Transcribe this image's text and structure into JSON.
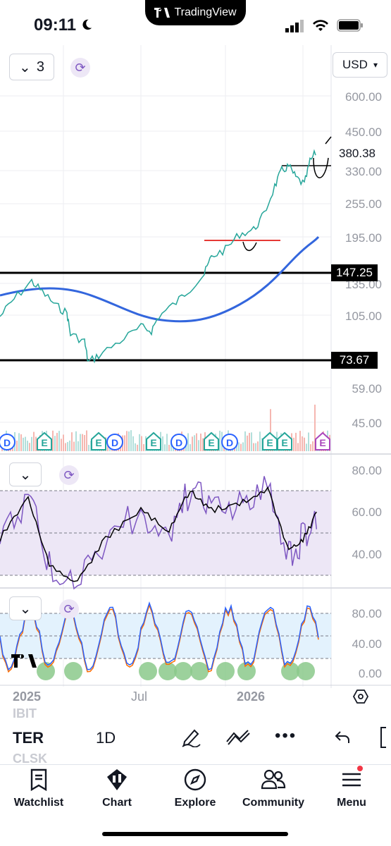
{
  "status": {
    "time": "09:11"
  },
  "island_label": "TradingView",
  "symbol": "TER",
  "interval": "1D",
  "currency": "USD",
  "layout_count": "3",
  "price_axis": [
    "600.00",
    "450.00",
    "330.00",
    "255.00",
    "195.00",
    "135.00",
    "105.00",
    "59.00",
    "45.00"
  ],
  "price_badges": {
    "last": "380.38",
    "line_upper": "147.25",
    "line_lower": "73.67"
  },
  "rsi_axis": [
    "80.00",
    "60.00",
    "40.00"
  ],
  "stoch_axis": [
    "80.00",
    "40.00",
    "0.00"
  ],
  "time_axis": [
    "2025",
    "Jul",
    "2026"
  ],
  "event_markers": [
    "D",
    "E",
    "E",
    "D",
    "E",
    "D",
    "E",
    "D",
    "E",
    "E"
  ],
  "ghost_symbols": [
    "IBIT",
    "CLSK"
  ],
  "nav": [
    {
      "label": "Watchlist",
      "icon": "watchlist-icon"
    },
    {
      "label": "Chart",
      "icon": "chart-icon"
    },
    {
      "label": "Explore",
      "icon": "compass-icon"
    },
    {
      "label": "Community",
      "icon": "community-icon"
    },
    {
      "label": "Menu",
      "icon": "menu-icon"
    }
  ],
  "colors": {
    "accent": "#2962ff",
    "ma": "#3366dd",
    "rsi": "#7e57c2",
    "stoch_k": "#2962ff",
    "stoch_d": "#ff6d00",
    "band": "#ede7f6",
    "stoch_band": "#e3f2fd",
    "highlight": "#8bc98b",
    "notification": "#f23645"
  }
}
